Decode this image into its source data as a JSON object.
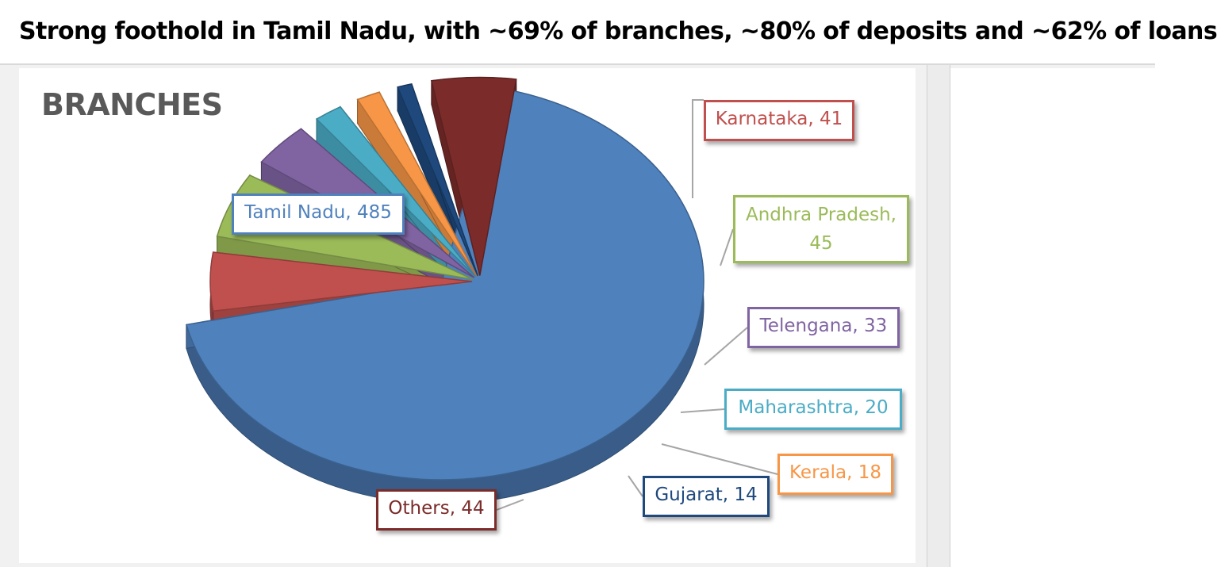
{
  "headline": "Strong foothold in Tamil Nadu, with ~69% of branches, ~80% of deposits and ~62% of loans",
  "chart_data": {
    "type": "pie",
    "title": "BRANCHES",
    "slices": [
      {
        "label": "Tamil Nadu",
        "value": 485,
        "display": "Tamil Nadu, 485",
        "color": "#4f81bd"
      },
      {
        "label": "Karnataka",
        "value": 41,
        "display": "Karnataka, 41",
        "color": "#c0504d"
      },
      {
        "label": "Andhra Pradesh",
        "value": 45,
        "display": "Andhra Pradesh, 45",
        "color": "#9bbb59"
      },
      {
        "label": "Telengana",
        "value": 33,
        "display": "Telengana, 33",
        "color": "#8064a2"
      },
      {
        "label": "Maharashtra",
        "value": 20,
        "display": "Maharashtra, 20",
        "color": "#4bacc6"
      },
      {
        "label": "Kerala",
        "value": 18,
        "display": "Kerala, 18",
        "color": "#f79646"
      },
      {
        "label": "Gujarat",
        "value": 14,
        "display": "Gujarat, 14",
        "color": "#1f497d"
      },
      {
        "label": "Others",
        "value": 44,
        "display": "Others, 44",
        "color": "#7b2c2a"
      }
    ]
  }
}
